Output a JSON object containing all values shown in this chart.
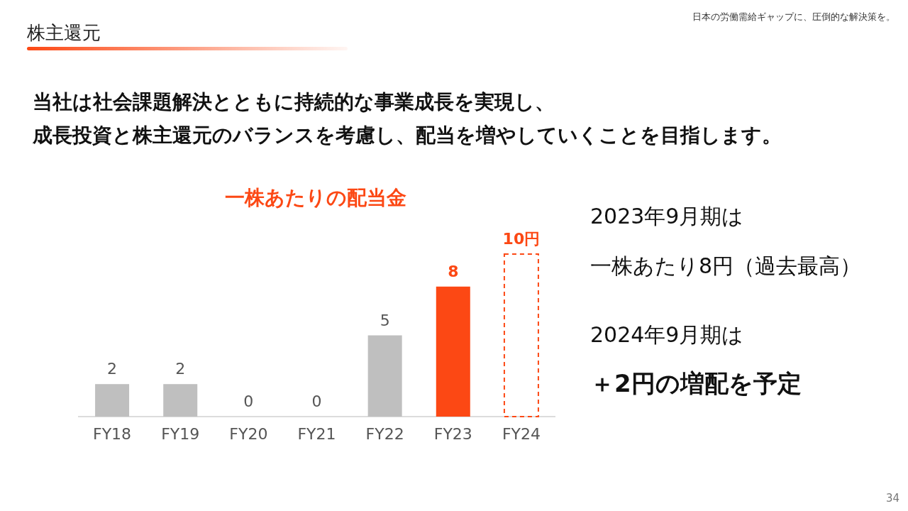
{
  "chart_data": {
    "type": "bar",
    "title": "一株あたりの配当金",
    "categories": [
      "FY18",
      "FY19",
      "FY20",
      "FY21",
      "FY22",
      "FY23",
      "FY24"
    ],
    "series": [
      {
        "colors": [
          "#bfbfbf",
          "#bfbfbf",
          "#bfbfbf",
          "#bfbfbf",
          "#bfbfbf",
          "#fc4814",
          null
        ],
        "values": [
          2,
          2,
          0,
          0,
          5,
          8,
          null
        ],
        "value_labels": [
          "2",
          "2",
          "0",
          "0",
          "5",
          "8",
          null
        ],
        "line_style": "solid"
      },
      {
        "color": "#fc4814",
        "values": [
          null,
          null,
          null,
          null,
          null,
          null,
          10
        ],
        "value_labels": [
          null,
          null,
          null,
          null,
          null,
          null,
          "10円"
        ],
        "line_style": "dashed"
      }
    ],
    "annotations": [
      "株主還元",
      "当社は社会課題解決とともに持続的な事業成長を実現し、",
      "成長投資と株主還元のバランスを考慮し、配当を増やしていくことを目指します。",
      "2023年9月期は",
      "一株あたり8円（過去最高）",
      "2024年9月期は",
      "＋2円の増配を予定",
      "日本の労働需給ギャップに、圧倒的な解決策を。",
      "34"
    ]
  }
}
